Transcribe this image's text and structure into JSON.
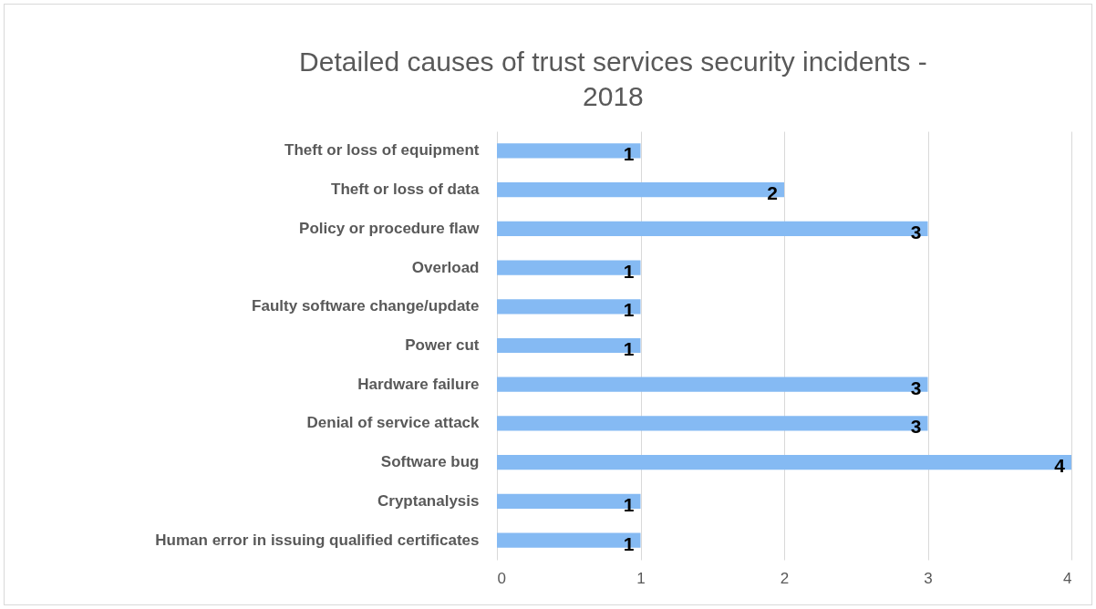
{
  "chart_data": {
    "type": "bar",
    "orientation": "horizontal",
    "title": "Detailed causes of trust services security incidents - 2018",
    "categories": [
      "Theft or loss of equipment",
      "Theft or loss of data",
      "Policy or procedure flaw",
      "Overload",
      "Faulty software change/update",
      "Power cut",
      "Hardware failure",
      "Denial of service attack",
      "Software bug",
      "Cryptanalysis",
      "Human error in issuing qualified certificates"
    ],
    "values": [
      1,
      2,
      3,
      1,
      1,
      1,
      3,
      3,
      4,
      1,
      1
    ],
    "color": "#85baf3",
    "xlim": [
      0,
      4
    ],
    "xticks": [
      0,
      1,
      2,
      3,
      4
    ],
    "grid": "x",
    "data_labels": true
  }
}
